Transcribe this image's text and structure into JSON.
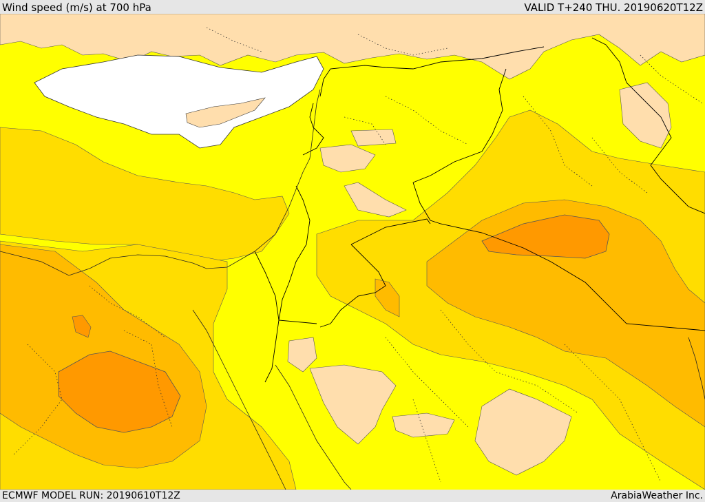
{
  "header": {
    "title": "Wind speed (m/s) at 700 hPa",
    "valid": "VALID T+240 THU. 20190620T12Z"
  },
  "footer": {
    "model_run": "ECMWF MODEL RUN: 20190610T12Z",
    "credit": "ArabiaWeather Inc."
  },
  "colors": {
    "band_lightest": "#ffdead",
    "band_yellow": "#ffff00",
    "band_gold": "#ffdd00",
    "band_amber": "#ffbb00",
    "band_orange": "#ff9900",
    "sea": "#ffffff",
    "border": "#000000"
  }
}
